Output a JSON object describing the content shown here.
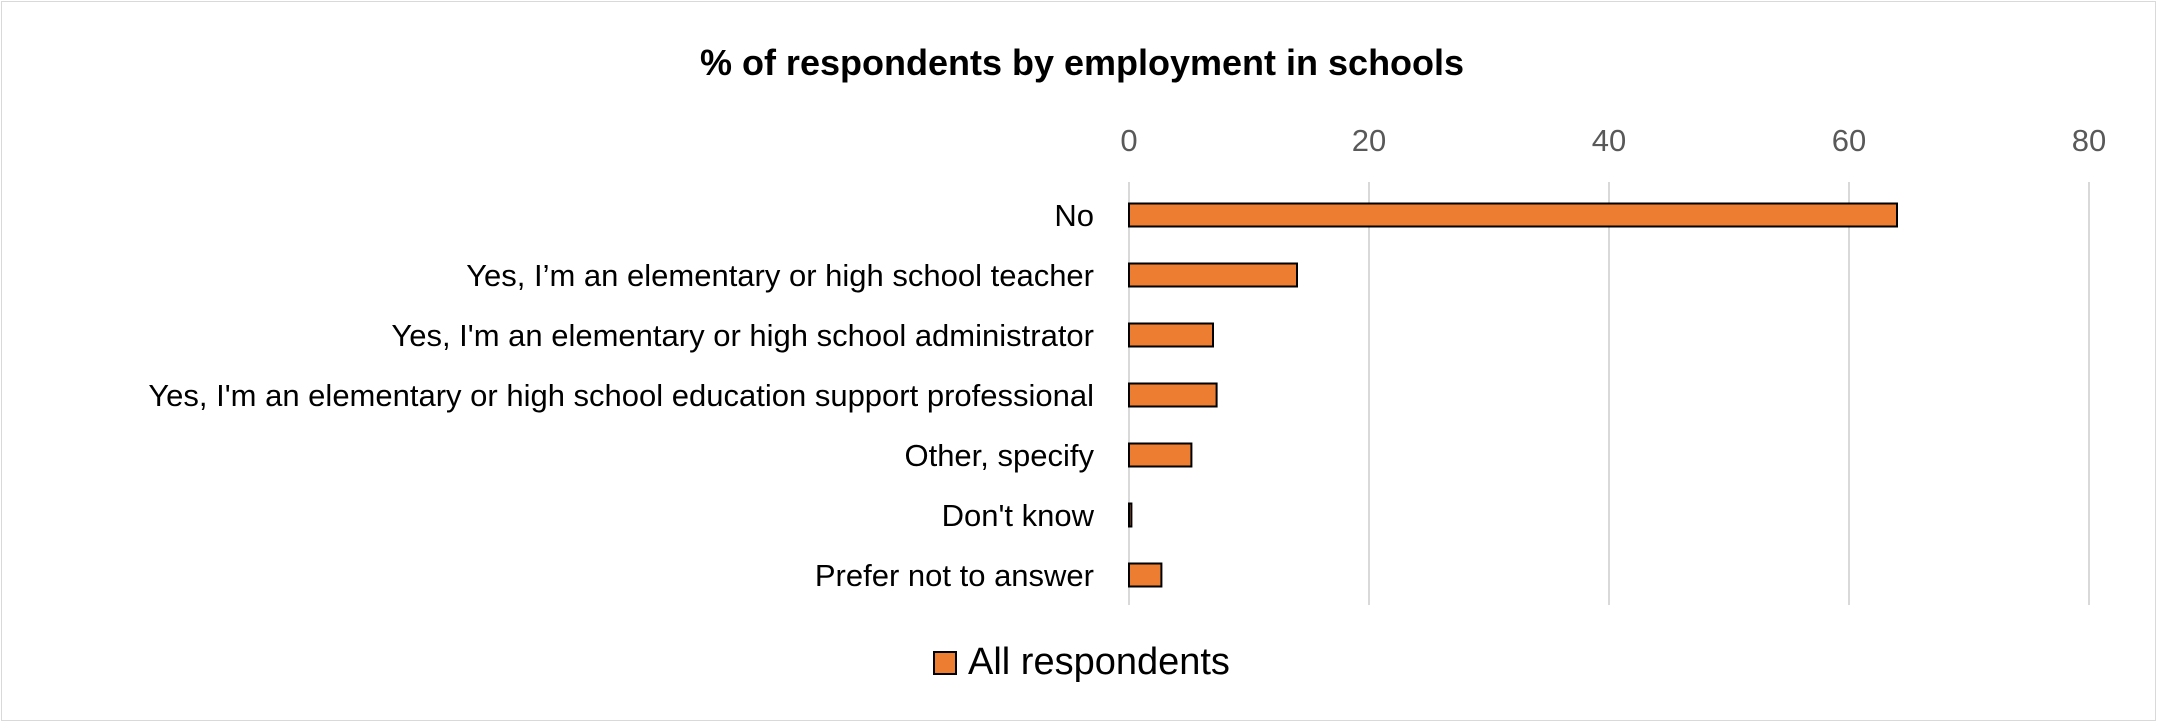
{
  "chart_data": {
    "type": "bar",
    "orientation": "horizontal",
    "title": "% of respondents by employment in schools",
    "categories": [
      "No",
      "Yes, I’m an elementary or high school teacher",
      "Yes, I'm an elementary or high school administrator",
      "Yes, I'm an elementary or high school education support professional",
      "Other, specify",
      "Don't know",
      "Prefer not to answer"
    ],
    "series": [
      {
        "name": "All respondents",
        "values": [
          64,
          14,
          7,
          7.3,
          5.2,
          0.2,
          2.7
        ],
        "color": "#ed7d31"
      }
    ],
    "xlim": [
      0,
      80
    ],
    "xticks": [
      0,
      20,
      40,
      60,
      80
    ],
    "x_axis_position": "top",
    "grid": true,
    "gridline_color": "#d9d9d9",
    "bar_outline_color": "#000000",
    "legend_position": "bottom"
  }
}
